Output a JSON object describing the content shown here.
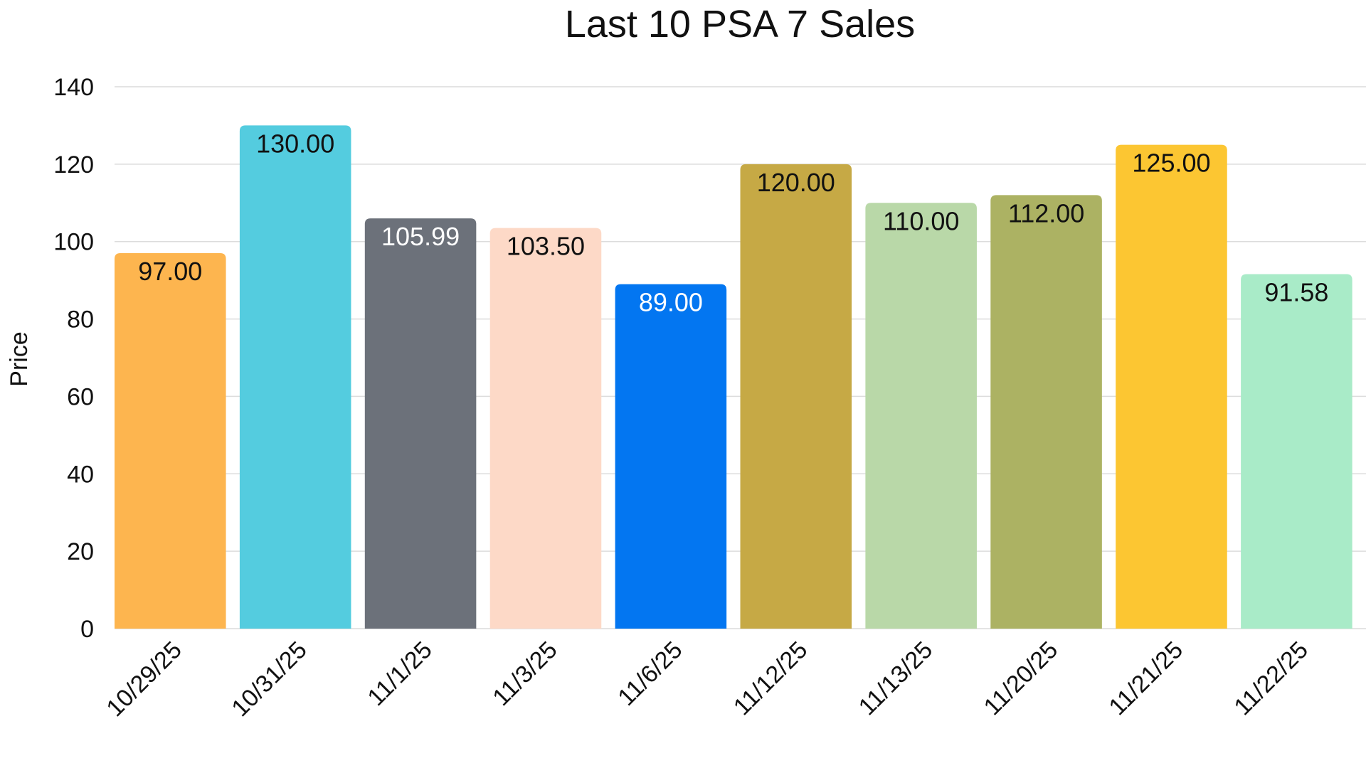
{
  "chart_data": {
    "type": "bar",
    "title": "Last 10 PSA 7 Sales",
    "xlabel": "",
    "ylabel": "Price",
    "ylim": [
      0,
      140
    ],
    "yticks": [
      0,
      20,
      40,
      60,
      80,
      100,
      120,
      140
    ],
    "grid": true,
    "legend": "none",
    "categories": [
      "10/29/25",
      "10/31/25",
      "11/1/25",
      "11/3/25",
      "11/6/25",
      "11/12/25",
      "11/13/25",
      "11/20/25",
      "11/21/25",
      "11/22/25"
    ],
    "values": [
      97.0,
      130.0,
      105.99,
      103.5,
      89.0,
      120.0,
      110.0,
      112.0,
      125.0,
      91.58
    ],
    "labels": [
      "97.00",
      "130.00",
      "105.99",
      "103.50",
      "89.00",
      "120.00",
      "110.00",
      "112.00",
      "125.00",
      "91.58"
    ],
    "colors": [
      "#FDB54F",
      "#54CCDF",
      "#6C717A",
      "#FDD9C7",
      "#0376F1",
      "#C6A945",
      "#B9D8A8",
      "#ACB263",
      "#FCC632",
      "#A9EBC8"
    ],
    "label_colors": [
      "#111111",
      "#111111",
      "#ffffff",
      "#111111",
      "#ffffff",
      "#111111",
      "#111111",
      "#111111",
      "#111111",
      "#111111"
    ]
  }
}
